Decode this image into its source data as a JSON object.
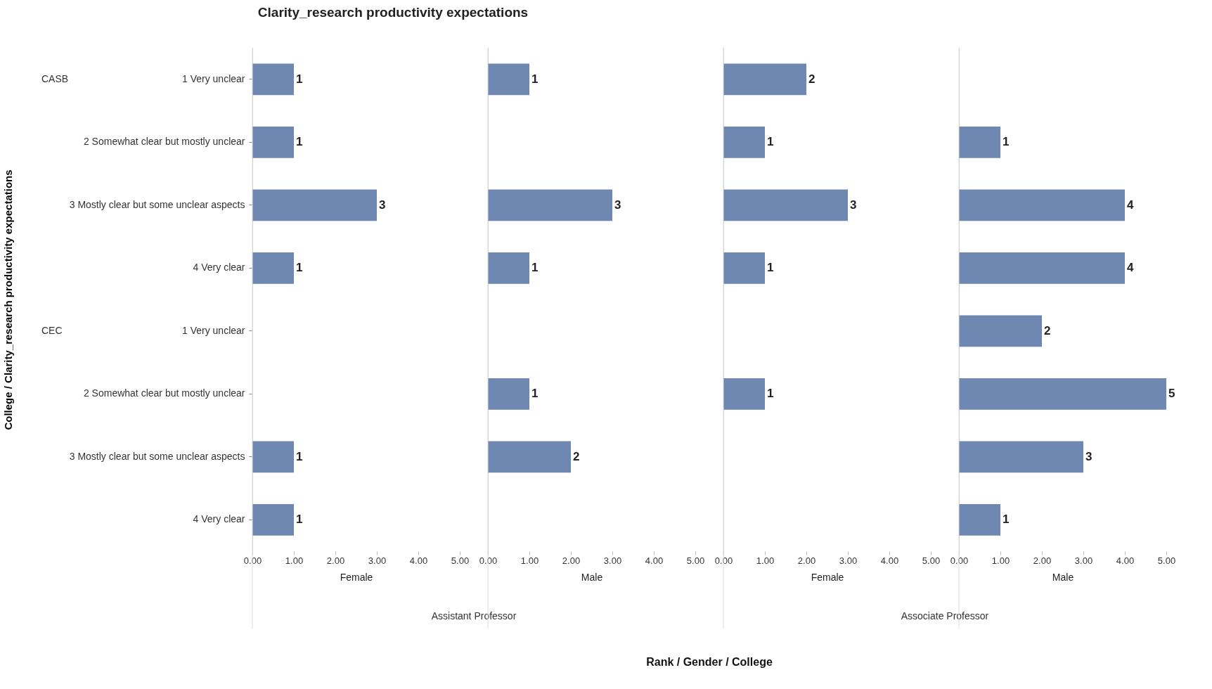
{
  "chart_data": [
    {
      "type": "bar",
      "orientation": "horizontal",
      "title": "Clarity_research productivity expectations",
      "ylabel": "College / Clarity_research productivity expectations",
      "xlabel": "Female",
      "categories": [
        "1 Very unclear",
        "2 Somewhat clear but mostly unclear",
        "3 Mostly clear but some unclear aspects",
        "4 Very clear",
        "1 Very unclear",
        "2 Somewhat clear but mostly unclear",
        "3 Mostly clear but some unclear aspects",
        "4 Very clear"
      ],
      "values": [
        1,
        1,
        3,
        1,
        null,
        null,
        1,
        1
      ],
      "color": "#6e88b1",
      "xlim": [
        0,
        5
      ],
      "xticks": [
        {
          "value": 0,
          "label": "0.00"
        },
        {
          "value": 1,
          "label": "1.00"
        },
        {
          "value": 2,
          "label": "2.00"
        },
        {
          "value": 3,
          "label": "3.00"
        },
        {
          "value": 4,
          "label": "4.00"
        },
        {
          "value": 5,
          "label": "5.00"
        }
      ],
      "data_labels": true,
      "annotations": [
        "CASB",
        "CEC",
        "Assistant Professor"
      ]
    },
    {
      "type": "bar",
      "orientation": "horizontal",
      "xlabel": "Male",
      "categories": [
        null,
        null,
        null,
        null,
        null,
        null,
        null,
        null
      ],
      "values": [
        1,
        null,
        3,
        1,
        null,
        1,
        2,
        null
      ],
      "color": "#6e88b1",
      "xlim": [
        0,
        5
      ],
      "xticks": [
        {
          "value": 0,
          "label": "0.00"
        },
        {
          "value": 1,
          "label": "1.00"
        },
        {
          "value": 2,
          "label": "2.00"
        },
        {
          "value": 3,
          "label": "3.00"
        },
        {
          "value": 4,
          "label": "4.00"
        },
        {
          "value": 5,
          "label": "5.00"
        }
      ],
      "data_labels": true,
      "tick_labels": "x",
      "annotations": [
        "Rank / Gender / College"
      ]
    },
    {
      "type": "bar",
      "orientation": "horizontal",
      "xlabel": "Female",
      "categories": [
        null,
        null,
        null,
        null,
        null,
        null,
        null,
        null
      ],
      "values": [
        2,
        1,
        3,
        1,
        null,
        1,
        null,
        null
      ],
      "color": "#6e88b1",
      "xlim": [
        0,
        5
      ],
      "xticks": [
        {
          "value": 0,
          "label": "0.00"
        },
        {
          "value": 1,
          "label": "1.00"
        },
        {
          "value": 2,
          "label": "2.00"
        },
        {
          "value": 3,
          "label": "3.00"
        },
        {
          "value": 4,
          "label": "4.00"
        },
        {
          "value": 5,
          "label": "5.00"
        }
      ],
      "data_labels": true,
      "tick_labels": "x",
      "annotations": [
        "Associate Professor"
      ]
    },
    {
      "type": "bar",
      "orientation": "horizontal",
      "xlabel": "Male",
      "categories": [
        null,
        null,
        null,
        null,
        null,
        null,
        null,
        null
      ],
      "values": [
        null,
        1,
        4,
        4,
        2,
        5,
        3,
        1
      ],
      "color": "#6e88b1",
      "xlim": [
        0,
        5
      ],
      "xticks": [
        {
          "value": 0,
          "label": "0.00"
        },
        {
          "value": 1,
          "label": "1.00"
        },
        {
          "value": 2,
          "label": "2.00"
        },
        {
          "value": 3,
          "label": "3.00"
        },
        {
          "value": 4,
          "label": "4.00"
        },
        {
          "value": 5,
          "label": "5.00"
        }
      ],
      "data_labels": true,
      "tick_labels": "x"
    }
  ]
}
